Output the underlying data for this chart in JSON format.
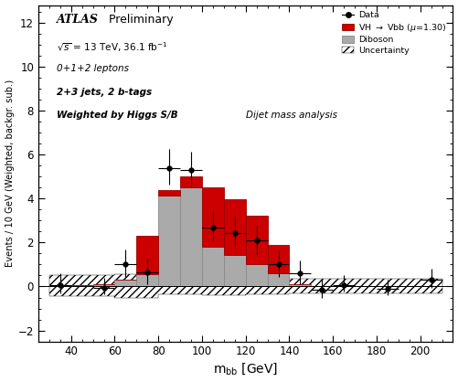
{
  "xlabel": "m$_{bb}$ [GeV]",
  "ylabel": "Events / 10 GeV (Weighted, backgr. sub.)",
  "xlim": [
    25,
    215
  ],
  "ylim": [
    -2.5,
    12.8
  ],
  "yticks": [
    -2,
    0,
    2,
    4,
    6,
    8,
    10,
    12
  ],
  "xticks": [
    40,
    60,
    80,
    100,
    120,
    140,
    160,
    180,
    200
  ],
  "bin_edges": [
    30,
    50,
    60,
    70,
    80,
    90,
    100,
    110,
    120,
    130,
    140,
    150,
    210
  ],
  "diboson_values": [
    0.05,
    0.1,
    0.3,
    0.55,
    4.15,
    4.5,
    1.8,
    1.45,
    1.0,
    0.6,
    0.1,
    0.02
  ],
  "signal_values": [
    0.0,
    0.0,
    0.0,
    1.75,
    0.25,
    0.5,
    2.7,
    2.5,
    2.2,
    1.3,
    0.0,
    0.0
  ],
  "data_x": [
    35,
    55,
    65,
    75,
    85,
    95,
    105,
    115,
    125,
    135,
    145,
    155,
    165,
    185,
    205
  ],
  "data_y": [
    0.05,
    -0.05,
    1.0,
    0.65,
    5.4,
    5.3,
    2.7,
    2.45,
    2.1,
    1.0,
    0.6,
    -0.15,
    0.05,
    -0.1,
    0.3
  ],
  "data_yerr_lo": [
    0.35,
    0.3,
    0.55,
    0.55,
    0.75,
    0.75,
    0.65,
    0.65,
    0.65,
    0.55,
    0.5,
    0.35,
    0.3,
    0.3,
    0.35
  ],
  "data_yerr_hi": [
    0.55,
    0.45,
    0.7,
    0.65,
    0.85,
    0.85,
    0.75,
    0.75,
    0.7,
    0.65,
    0.6,
    0.5,
    0.45,
    0.4,
    0.5
  ],
  "data_xerr": 5.0,
  "unc_lo": [
    -0.45,
    -0.45,
    -0.5,
    -0.5,
    -0.35,
    -0.35,
    -0.4,
    -0.4,
    -0.35,
    -0.35,
    -0.3,
    -0.3
  ],
  "unc_hi": [
    0.5,
    0.5,
    0.55,
    0.55,
    0.4,
    0.4,
    0.45,
    0.45,
    0.4,
    0.4,
    0.35,
    0.35
  ],
  "signal_color": "#cc0000",
  "diboson_color": "#aaaaaa",
  "signal_edge_color": "#990000",
  "diboson_edge_color": "#888888",
  "data_color": "black",
  "bg_color": "#ffffff",
  "atlas_text": "ATLAS",
  "prelim_text": " Preliminary",
  "line1": "√s = 13 TeV, 36.1 fb⁻¹",
  "line2": "0+1+2 leptons",
  "line3": "2+3 jets, 2 b-tags",
  "line4": "Weighted by Higgs S/B",
  "line5": "Dijet mass analysis"
}
